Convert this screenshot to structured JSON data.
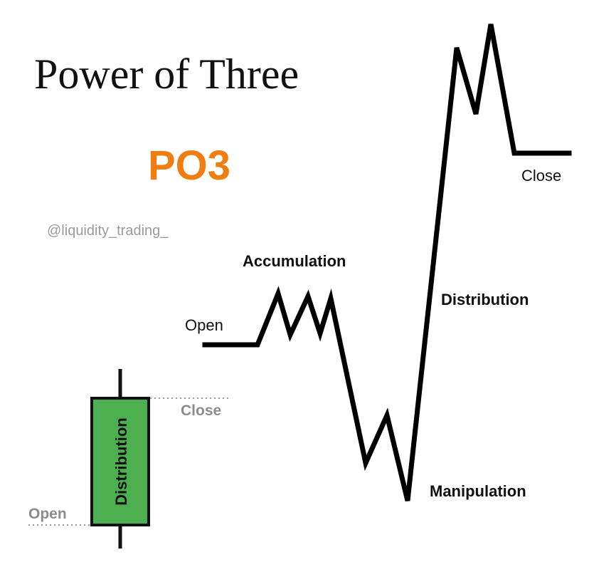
{
  "title": "Power of Three",
  "subtitle": "PO3",
  "watermark": "@liquidity_trading_",
  "path_labels": {
    "open": "Open",
    "accumulation": "Accumulation",
    "distribution": "Distribution",
    "manipulation": "Manipulation",
    "close": "Close"
  },
  "candle": {
    "body_label": "Distribution",
    "open_label": "Open",
    "close_label": "Close"
  },
  "colors": {
    "title": "#111111",
    "subtitle": "#f07d10",
    "watermark": "#9a9a9a",
    "candle_fill": "#4caf50",
    "candle_stroke": "#111111",
    "price_line": "#000000",
    "guide_text": "#8c8c8c"
  }
}
